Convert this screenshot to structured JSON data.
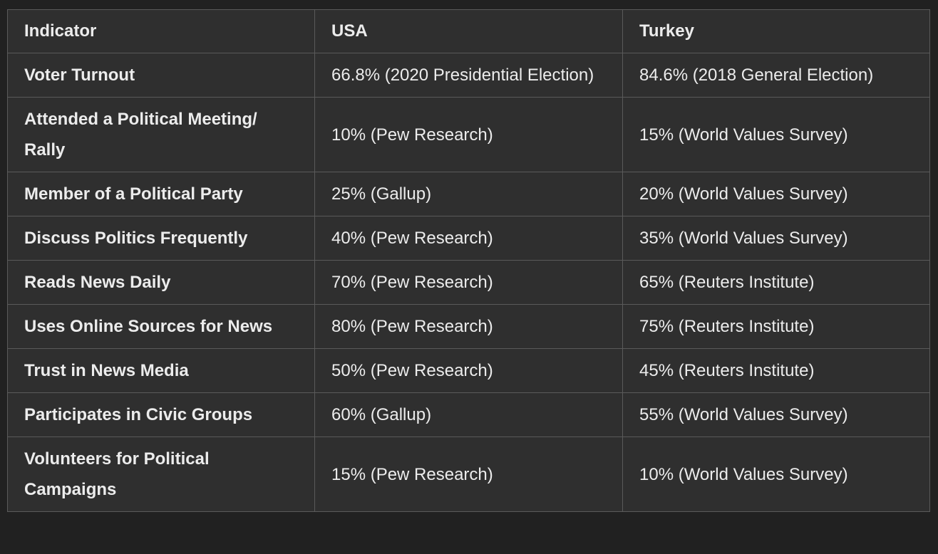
{
  "table": {
    "headers": [
      "Indicator",
      "USA",
      "Turkey"
    ],
    "rows": [
      [
        "Voter Turnout",
        "66.8% (2020 Presidential Election)",
        "84.6% (2018 General Election)"
      ],
      [
        "Attended a Political Meeting/ Rally",
        "10% (Pew Research)",
        "15% (World Values Survey)"
      ],
      [
        "Member of a Political Party",
        "25% (Gallup)",
        "20% (World Values Survey)"
      ],
      [
        "Discuss Politics Frequently",
        "40% (Pew Research)",
        "35% (World Values Survey)"
      ],
      [
        "Reads News Daily",
        "70% (Pew Research)",
        "65% (Reuters Institute)"
      ],
      [
        "Uses Online Sources for News",
        "80% (Pew Research)",
        "75% (Reuters Institute)"
      ],
      [
        "Trust in News Media",
        "50% (Pew Research)",
        "45% (Reuters Institute)"
      ],
      [
        "Participates in Civic Groups",
        "60% (Gallup)",
        "55% (World Values Survey)"
      ],
      [
        "Volunteers for Political Campaigns",
        "15% (Pew Research)",
        "10% (World Values Survey)"
      ]
    ]
  }
}
